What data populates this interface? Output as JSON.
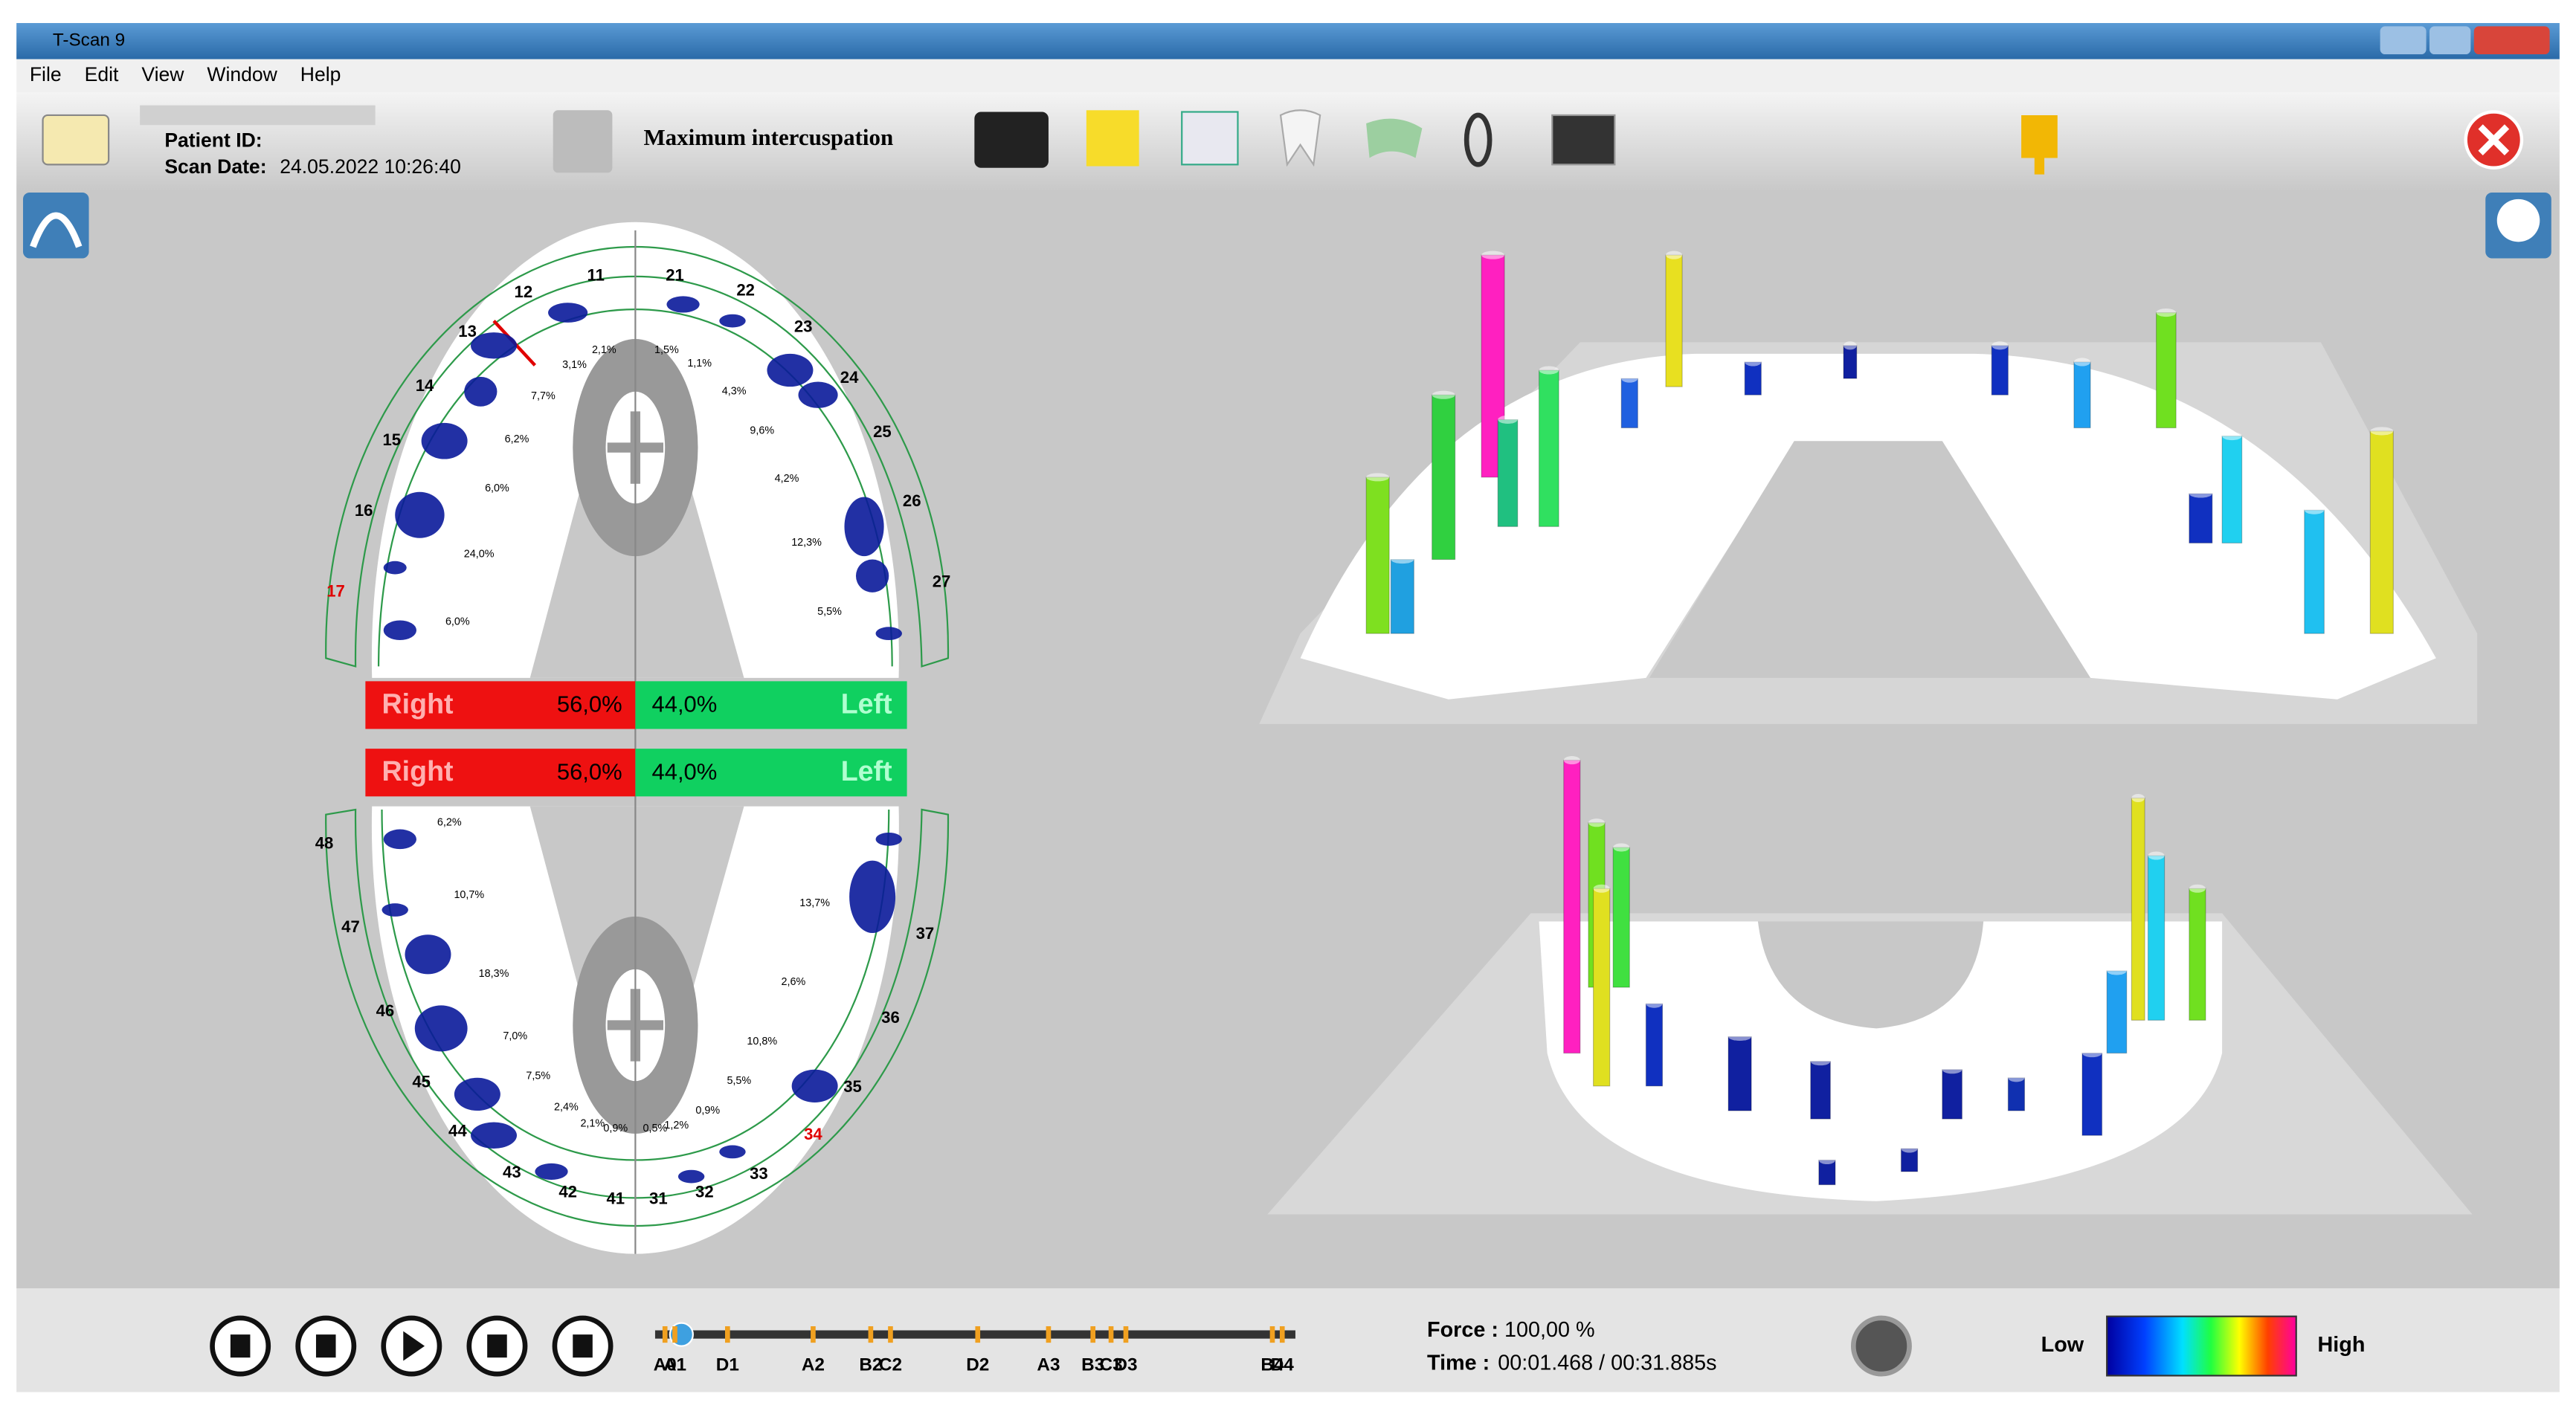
{
  "window": {
    "title": "T-Scan 9"
  },
  "menu": [
    "File",
    "Edit",
    "View",
    "Window",
    "Help"
  ],
  "toolbar": {
    "patient_id_label": "Patient ID:",
    "scan_date_label": "Scan Date:",
    "scan_date": "24.05.2022 10:26:40",
    "mode": "Maximum intercuspation"
  },
  "upper_arch": {
    "teeth": [
      "11",
      "12",
      "13",
      "14",
      "15",
      "16",
      "17",
      "21",
      "22",
      "23",
      "24",
      "25",
      "26",
      "27"
    ],
    "percentages": [
      "2,1%",
      "3,1%",
      "7,7%",
      "6,2%",
      "6,0%",
      "24,0%",
      "6,0%",
      "1,5%",
      "1,1%",
      "4,3%",
      "9,6%",
      "4,2%",
      "12,3%",
      "5,5%"
    ]
  },
  "balance": [
    {
      "right_label": "Right",
      "right_value": "56,0%",
      "left_value": "44,0%",
      "left_label": "Left"
    },
    {
      "right_label": "Right",
      "right_value": "56,0%",
      "left_value": "44,0%",
      "left_label": "Left"
    }
  ],
  "lower_arch": {
    "teeth": [
      "48",
      "47",
      "46",
      "45",
      "44",
      "43",
      "42",
      "41",
      "31",
      "32",
      "33",
      "34",
      "35",
      "36",
      "37"
    ],
    "percentages": [
      "6,2%",
      "10,7%",
      "18,3%",
      "7,0%",
      "7,5%",
      "2,4%",
      "2,1%",
      "0,9%",
      "0,5%",
      "1,2%",
      "0,9%",
      "5,5%",
      "10,8%",
      "2,6%",
      "13,7%"
    ]
  },
  "timeline": {
    "markers": [
      "A0",
      "A1",
      "D1",
      "A2",
      "B2",
      "C2",
      "D2",
      "A3",
      "B3",
      "C3",
      "D3",
      "B4",
      "D4"
    ]
  },
  "status": {
    "force_label": "Force :",
    "force": "100,00 %",
    "time_label": "Time :",
    "time": "00:01.468 / 00:31.885s"
  },
  "legend": {
    "low": "Low",
    "high": "High"
  }
}
